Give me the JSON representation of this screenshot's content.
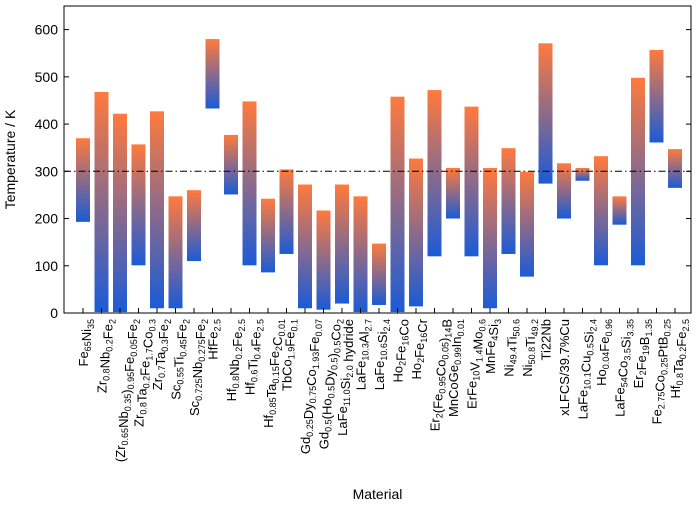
{
  "chart_data": {
    "type": "bar",
    "subtype": "floating-range",
    "xlabel": "Material",
    "ylabel": "Temperature / K",
    "ylim": [
      0,
      650
    ],
    "yticks": [
      0,
      100,
      200,
      300,
      400,
      500,
      600
    ],
    "reference_line": 300,
    "grid": false,
    "colors": {
      "high": "#ff7a3d",
      "low": "#1a5bd6"
    },
    "categories": [
      {
        "parts": [
          [
            "Fe",
            ""
          ],
          [
            "65",
            "s"
          ],
          [
            "Ni",
            ""
          ],
          [
            "35",
            "s"
          ]
        ],
        "range": [
          193,
          370
        ]
      },
      {
        "parts": [
          [
            "Zr",
            ""
          ],
          [
            "0.8",
            "s"
          ],
          [
            "Nb",
            ""
          ],
          [
            "0.2",
            "s"
          ],
          [
            "Fe",
            ""
          ],
          [
            "2",
            "s"
          ]
        ],
        "range": [
          2,
          468
        ]
      },
      {
        "parts": [
          [
            "(Zr",
            ""
          ],
          [
            "0.65",
            "s"
          ],
          [
            "Nb",
            ""
          ],
          [
            "0.35",
            "s"
          ],
          [
            ")",
            ""
          ],
          [
            "0.95",
            "s"
          ],
          [
            "Fe",
            ""
          ],
          [
            "0.05",
            "s"
          ],
          [
            "Fe",
            ""
          ],
          [
            "2",
            "s"
          ]
        ],
        "range": [
          2,
          422
        ]
      },
      {
        "parts": [
          [
            "Zr",
            ""
          ],
          [
            "0.8",
            "s"
          ],
          [
            "Ta",
            ""
          ],
          [
            "0.2",
            "s"
          ],
          [
            "Fe",
            ""
          ],
          [
            "1.7",
            "s"
          ],
          [
            "Co",
            ""
          ],
          [
            "0.3",
            "s"
          ]
        ],
        "range": [
          101,
          357
        ]
      },
      {
        "parts": [
          [
            "Zr",
            ""
          ],
          [
            "0.7",
            "s"
          ],
          [
            "Ta",
            ""
          ],
          [
            "0.3",
            "s"
          ],
          [
            "Fe",
            ""
          ],
          [
            "2",
            "s"
          ]
        ],
        "range": [
          10,
          427
        ]
      },
      {
        "parts": [
          [
            "Sc",
            ""
          ],
          [
            "0.55",
            "s"
          ],
          [
            "Ti",
            ""
          ],
          [
            "0.45",
            "s"
          ],
          [
            "Fe",
            ""
          ],
          [
            "2",
            "s"
          ]
        ],
        "range": [
          10,
          247
        ]
      },
      {
        "parts": [
          [
            "Sc",
            ""
          ],
          [
            "0.725",
            "s"
          ],
          [
            "Nb",
            ""
          ],
          [
            "0.275",
            "s"
          ],
          [
            "Fe",
            ""
          ],
          [
            "2",
            "s"
          ]
        ],
        "range": [
          110,
          260
        ]
      },
      {
        "parts": [
          [
            "HfFe",
            ""
          ],
          [
            "2.5",
            "s"
          ]
        ],
        "range": [
          433,
          580
        ]
      },
      {
        "parts": [
          [
            "Hf",
            ""
          ],
          [
            "0.8",
            "s"
          ],
          [
            "Nb",
            ""
          ],
          [
            "0.2",
            "s"
          ],
          [
            "Fe",
            ""
          ],
          [
            "2.5",
            "s"
          ]
        ],
        "range": [
          251,
          377
        ]
      },
      {
        "parts": [
          [
            "Hf",
            ""
          ],
          [
            "0.6",
            "s"
          ],
          [
            "Ti",
            ""
          ],
          [
            "0.4",
            "s"
          ],
          [
            "Fe",
            ""
          ],
          [
            "2.5",
            "s"
          ]
        ],
        "range": [
          101,
          448
        ]
      },
      {
        "parts": [
          [
            "Hf",
            ""
          ],
          [
            "0.85",
            "s"
          ],
          [
            "Ta",
            ""
          ],
          [
            "0.15",
            "s"
          ],
          [
            "Fe",
            ""
          ],
          [
            "2",
            "s"
          ],
          [
            "C",
            ""
          ],
          [
            "0.01",
            "s"
          ]
        ],
        "range": [
          86,
          242
        ]
      },
      {
        "parts": [
          [
            "TbCo",
            ""
          ],
          [
            "1.9",
            "s"
          ],
          [
            "Fe",
            ""
          ],
          [
            "0.1",
            "s"
          ]
        ],
        "range": [
          125,
          304
        ]
      },
      {
        "parts": [
          [
            "Gd",
            ""
          ],
          [
            "0.25",
            "s"
          ],
          [
            "Dy",
            ""
          ],
          [
            "0.75",
            "s"
          ],
          [
            "Co",
            ""
          ],
          [
            "1.93",
            "s"
          ],
          [
            "Fe",
            ""
          ],
          [
            "0.07",
            "s"
          ]
        ],
        "range": [
          10,
          272
        ]
      },
      {
        "parts": [
          [
            "Gd",
            ""
          ],
          [
            "0.5",
            "s"
          ],
          [
            "(Ho",
            ""
          ],
          [
            "0.5",
            "s"
          ],
          [
            "Dy",
            ""
          ],
          [
            "0.5",
            "s"
          ],
          [
            ")",
            ""
          ],
          [
            "0.5",
            "s"
          ],
          [
            "Co",
            ""
          ],
          [
            "2",
            "s"
          ]
        ],
        "range": [
          7,
          217
        ]
      },
      {
        "parts": [
          [
            "LaFe",
            ""
          ],
          [
            "11.0",
            "s"
          ],
          [
            "Si",
            ""
          ],
          [
            "2.0",
            "s"
          ],
          [
            " hydride",
            ""
          ]
        ],
        "range": [
          20,
          272
        ]
      },
      {
        "parts": [
          [
            "LaFe",
            ""
          ],
          [
            "10.3",
            "s"
          ],
          [
            "Al",
            ""
          ],
          [
            "2.7",
            "s"
          ]
        ],
        "range": [
          2,
          247
        ]
      },
      {
        "parts": [
          [
            "LaFe",
            ""
          ],
          [
            "10.6",
            "s"
          ],
          [
            "Si",
            ""
          ],
          [
            "2.4",
            "s"
          ]
        ],
        "range": [
          17,
          147
        ]
      },
      {
        "parts": [
          [
            "Ho",
            ""
          ],
          [
            "2",
            "s"
          ],
          [
            "Fe",
            ""
          ],
          [
            "16",
            "s"
          ],
          [
            "Co",
            ""
          ]
        ],
        "range": [
          2,
          458
        ]
      },
      {
        "parts": [
          [
            "Ho",
            ""
          ],
          [
            "2",
            "s"
          ],
          [
            "Fe",
            ""
          ],
          [
            "16",
            "s"
          ],
          [
            "Cr",
            ""
          ]
        ],
        "range": [
          14,
          327
        ]
      },
      {
        "parts": [
          [
            "Er",
            ""
          ],
          [
            "2",
            "s"
          ],
          [
            "(Fe",
            ""
          ],
          [
            "0.95",
            "s"
          ],
          [
            "Co",
            ""
          ],
          [
            "0.05",
            "s"
          ],
          [
            ")",
            ""
          ],
          [
            "14",
            "s"
          ],
          [
            "B",
            ""
          ]
        ],
        "range": [
          120,
          472
        ]
      },
      {
        "parts": [
          [
            "MnCoGe",
            ""
          ],
          [
            "0.99",
            "s"
          ],
          [
            "In",
            ""
          ],
          [
            "0.01",
            "s"
          ]
        ],
        "range": [
          200,
          307
        ]
      },
      {
        "parts": [
          [
            "ErFe",
            ""
          ],
          [
            "10",
            "s"
          ],
          [
            "V",
            ""
          ],
          [
            "1.4",
            "s"
          ],
          [
            "Mo",
            ""
          ],
          [
            "0.6",
            "s"
          ]
        ],
        "range": [
          120,
          437
        ]
      },
      {
        "parts": [
          [
            "MnFe",
            ""
          ],
          [
            "4",
            "s"
          ],
          [
            "Si",
            ""
          ],
          [
            "3",
            "s"
          ]
        ],
        "range": [
          10,
          307
        ]
      },
      {
        "parts": [
          [
            "Ni",
            ""
          ],
          [
            "49.4",
            "s"
          ],
          [
            "Ti",
            ""
          ],
          [
            "50.6",
            "s"
          ]
        ],
        "range": [
          125,
          349
        ]
      },
      {
        "parts": [
          [
            "Ni",
            ""
          ],
          [
            "50.8",
            "s"
          ],
          [
            "Ti",
            ""
          ],
          [
            "49.2",
            "s"
          ]
        ],
        "range": [
          77,
          299
        ]
      },
      {
        "parts": [
          [
            "Ti22Nb",
            ""
          ]
        ],
        "range": [
          274,
          571
        ]
      },
      {
        "parts": [
          [
            "xLFCS/39.7%Cu",
            ""
          ]
        ],
        "range": [
          200,
          317
        ]
      },
      {
        "parts": [
          [
            "LaFe",
            ""
          ],
          [
            "10.1",
            "s"
          ],
          [
            "Cu",
            ""
          ],
          [
            "0.5",
            "s"
          ],
          [
            "Si",
            ""
          ],
          [
            "2.4",
            "s"
          ]
        ],
        "range": [
          280,
          307
        ]
      },
      {
        "parts": [
          [
            "Ho",
            ""
          ],
          [
            "0.04",
            "s"
          ],
          [
            "Fe",
            ""
          ],
          [
            "0.96",
            "s"
          ]
        ],
        "range": [
          101,
          332
        ]
      },
      {
        "parts": [
          [
            "LaFe",
            ""
          ],
          [
            "54",
            "s"
          ],
          [
            "Co",
            ""
          ],
          [
            "3.5",
            "s"
          ],
          [
            "Si",
            ""
          ],
          [
            "3.35",
            "s"
          ]
        ],
        "range": [
          187,
          247
        ]
      },
      {
        "parts": [
          [
            "Er",
            ""
          ],
          [
            "2",
            "s"
          ],
          [
            "Fe",
            ""
          ],
          [
            "19",
            "s"
          ],
          [
            "B",
            ""
          ],
          [
            "1.35",
            "s"
          ]
        ],
        "range": [
          101,
          498
        ]
      },
      {
        "parts": [
          [
            "Fe",
            ""
          ],
          [
            "2.75",
            "s"
          ],
          [
            "Co",
            ""
          ],
          [
            "0.25",
            "s"
          ],
          [
            "PtB",
            ""
          ],
          [
            "0.25",
            "s"
          ]
        ],
        "range": [
          361,
          557
        ]
      },
      {
        "parts": [
          [
            "Hf",
            ""
          ],
          [
            "0.8",
            "s"
          ],
          [
            "Ta",
            ""
          ],
          [
            "0.2",
            "s"
          ],
          [
            "Fe",
            ""
          ],
          [
            "2.5",
            "s"
          ]
        ],
        "range": [
          265,
          347
        ]
      }
    ]
  }
}
